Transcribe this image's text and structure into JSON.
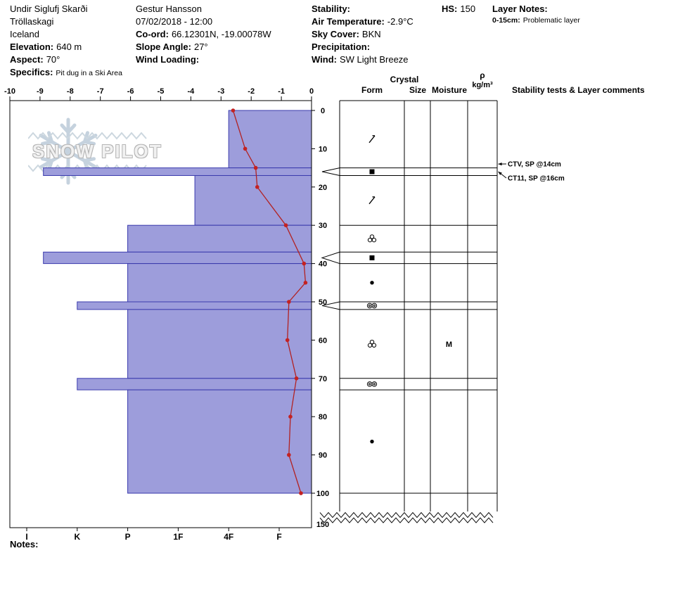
{
  "header": {
    "location_name": "Undir Siglufj Skarði",
    "region": "Tröllaskagi",
    "country": "Iceland",
    "elevation": {
      "label": "Elevation:",
      "value": "640 m"
    },
    "aspect": {
      "label": "Aspect:",
      "value": "70°"
    },
    "specifics": {
      "label": "Specifics:",
      "value": "Pit dug in a Ski Area"
    },
    "observer": "Gestur Hansson",
    "datetime": "07/02/2018 - 12:00",
    "coord": {
      "label": "Co-ord:",
      "value": "66.12301N, -19.00078W"
    },
    "slope_angle": {
      "label": "Slope Angle:",
      "value": "27°"
    },
    "wind_loading": {
      "label": "Wind Loading:",
      "value": ""
    },
    "stability": {
      "label": "Stability:",
      "value": ""
    },
    "air_temperature": {
      "label": "Air Temperature:",
      "value": "-2.9°C"
    },
    "sky_cover": {
      "label": "Sky Cover:",
      "value": "BKN"
    },
    "precipitation": {
      "label": "Precipitation:",
      "value": ""
    },
    "wind": {
      "label": "Wind:",
      "value": "SW Light Breeze"
    },
    "hs": {
      "label": "HS:",
      "value": "150"
    },
    "layer_notes": {
      "label": "Layer Notes:",
      "entry_range": "0-15cm:",
      "entry_text": "Problematic layer"
    }
  },
  "watermark": {
    "text": "SNOW PILOT"
  },
  "panel": {
    "crystal_header": "Crystal",
    "form_header": "Form",
    "size_header": "Size",
    "moisture_header": "Moisture",
    "density_symbol": "ρ",
    "density_units": "kg/m³",
    "stability_header": "Stability tests & Layer comments"
  },
  "notes_label": "Notes:",
  "colors": {
    "layer_fill": "#9d9ddb",
    "layer_border": "#3a3aad",
    "temperature_line": "#b22222",
    "temperature_point": "#c42222"
  },
  "chart_data": {
    "type": "bar",
    "subtype": "snow-pit-profile",
    "title": "Snow profile: hand-hardness layers with temperature trace",
    "temperature_axis": {
      "position": "top",
      "unit": "°C",
      "min": -10,
      "max": 0,
      "ticks": [
        -10,
        -9,
        -8,
        -7,
        -6,
        -5,
        -4,
        -3,
        -2,
        -1,
        0
      ]
    },
    "depth_axis": {
      "position": "right-of-plot",
      "unit": "cm",
      "ticks": [
        0,
        10,
        20,
        30,
        40,
        50,
        60,
        70,
        80,
        90,
        100
      ],
      "total_depth_tick": 150
    },
    "hardness_axis": {
      "position": "bottom",
      "ticks": [
        "I",
        "K",
        "P",
        "1F",
        "4F",
        "F"
      ],
      "scale": {
        "F": 1,
        "4F": 2,
        "1F": 3,
        "P": 4,
        "K": 5,
        "I": 6
      }
    },
    "layers": [
      {
        "top_cm": 0,
        "bottom_cm": 15,
        "hardness": "4F",
        "hardness_index": 2.0,
        "grain_form": "decomposing-fragments"
      },
      {
        "top_cm": 15,
        "bottom_cm": 17,
        "hardness": "K-I",
        "hardness_index": 5.67,
        "grain_form": "ice-crust"
      },
      {
        "top_cm": 17,
        "bottom_cm": 30,
        "hardness": "4F-1F",
        "hardness_index": 2.67,
        "grain_form": "decomposing-fragments"
      },
      {
        "top_cm": 30,
        "bottom_cm": 37,
        "hardness": "P",
        "hardness_index": 4.0,
        "grain_form": "melt-cluster"
      },
      {
        "top_cm": 37,
        "bottom_cm": 40,
        "hardness": "K-I",
        "hardness_index": 5.67,
        "grain_form": "ice-crust"
      },
      {
        "top_cm": 40,
        "bottom_cm": 50,
        "hardness": "P",
        "hardness_index": 4.0,
        "grain_form": "rounded-grains"
      },
      {
        "top_cm": 50,
        "bottom_cm": 52,
        "hardness": "K",
        "hardness_index": 5.0,
        "grain_form": "melt-polycrystals"
      },
      {
        "top_cm": 52,
        "bottom_cm": 70,
        "hardness": "P",
        "hardness_index": 4.0,
        "grain_form": "melt-cluster",
        "moisture": "M"
      },
      {
        "top_cm": 70,
        "bottom_cm": 73,
        "hardness": "K",
        "hardness_index": 5.0,
        "grain_form": "melt-polycrystals"
      },
      {
        "top_cm": 73,
        "bottom_cm": 100,
        "hardness": "P",
        "hardness_index": 4.0,
        "grain_form": "rounded-grains"
      }
    ],
    "callout_wedges_cm": [
      [
        15,
        17
      ],
      [
        37,
        40
      ],
      [
        50,
        52
      ]
    ],
    "temperature_profile_c": [
      [
        0,
        -2.6
      ],
      [
        10,
        -2.2
      ],
      [
        15,
        -1.85
      ],
      [
        20,
        -1.8
      ],
      [
        30,
        -0.85
      ],
      [
        40,
        -0.25
      ],
      [
        45,
        -0.2
      ],
      [
        50,
        -0.75
      ],
      [
        60,
        -0.8
      ],
      [
        70,
        -0.5
      ],
      [
        80,
        -0.7
      ],
      [
        90,
        -0.75
      ],
      [
        100,
        -0.35
      ]
    ],
    "stability_annotations": [
      {
        "text": "CTV, SP @14cm",
        "points_to_cm": 14
      },
      {
        "text": "CT11, SP @16cm",
        "points_to_cm": 16
      }
    ]
  }
}
